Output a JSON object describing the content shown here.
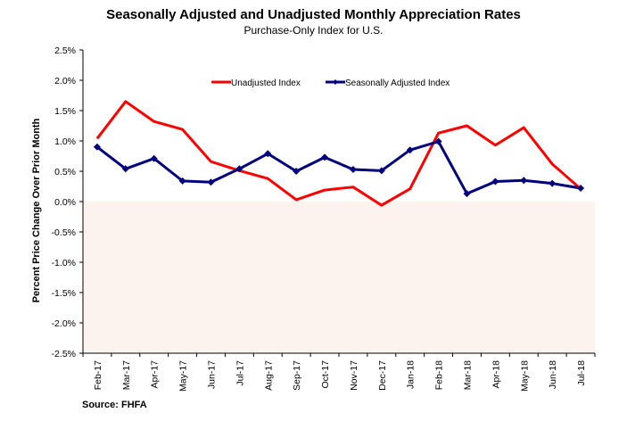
{
  "chart_data": {
    "type": "line",
    "title": "Seasonally Adjusted and Unadjusted Monthly Appreciation Rates",
    "subtitle": "Purchase-Only Index for U.S.",
    "xlabel": "",
    "ylabel": "Percent Price Change Over Prior Month",
    "ylim": [
      -2.5,
      2.5
    ],
    "ytick_step": 0.5,
    "yticks": [
      "2.5%",
      "2.0%",
      "1.5%",
      "1.0%",
      "0.5%",
      "0.0%",
      "-0.5%",
      "-1.0%",
      "-1.5%",
      "-2.0%",
      "-2.5%"
    ],
    "categories": [
      "Feb-17",
      "Mar-17",
      "Apr-17",
      "May-17",
      "Jun-17",
      "Jul-17",
      "Aug-17",
      "Sep-17",
      "Oct-17",
      "Nov-17",
      "Dec-17",
      "Jan-18",
      "Feb-18",
      "Mar-18",
      "Apr-18",
      "May-18",
      "Jun-18",
      "Jul-18"
    ],
    "series": [
      {
        "name": "Unadjusted Index",
        "color": "#ff0000",
        "marker": "none",
        "values": [
          1.04,
          1.65,
          1.32,
          1.19,
          0.66,
          0.51,
          0.38,
          0.03,
          0.19,
          0.24,
          -0.06,
          0.21,
          1.13,
          1.25,
          0.93,
          1.22,
          0.62,
          0.21
        ]
      },
      {
        "name": "Seasonally Adjusted Index",
        "color": "#000080",
        "marker": "diamond",
        "values": [
          0.9,
          0.54,
          0.71,
          0.34,
          0.32,
          0.54,
          0.79,
          0.5,
          0.73,
          0.53,
          0.51,
          0.85,
          0.99,
          0.13,
          0.33,
          0.35,
          0.3,
          0.22
        ]
      }
    ],
    "negative_region_shading": "#fdf3ee",
    "legend_position": "top-center",
    "grid": false
  },
  "source": "Source: FHFA"
}
